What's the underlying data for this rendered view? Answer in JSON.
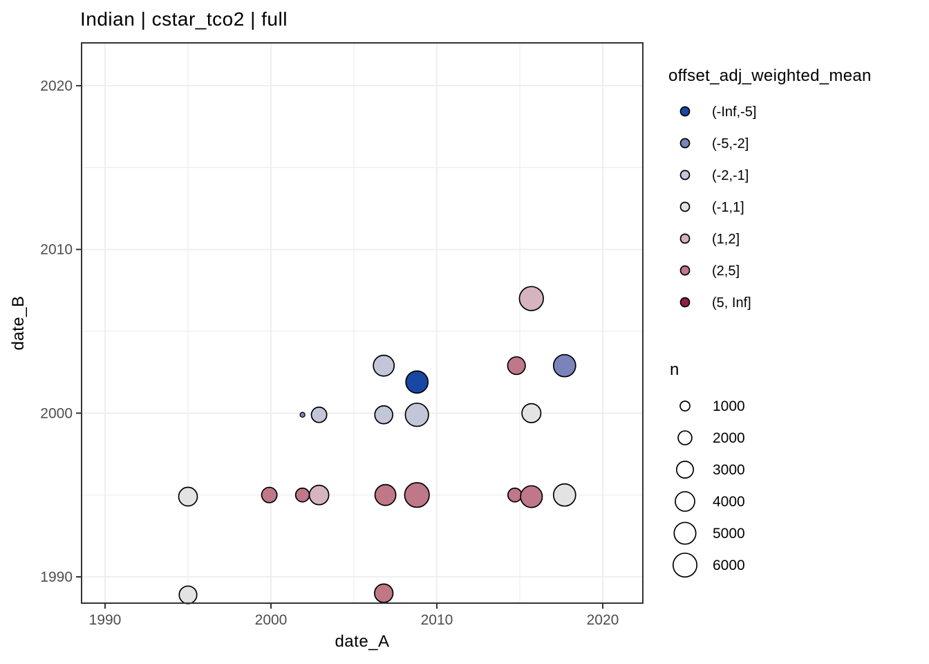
{
  "chart_data": {
    "type": "scatter",
    "title": "Indian | cstar_tco2 | full",
    "xlabel": "date_A",
    "ylabel": "date_B",
    "x_domain": [
      1988.583,
      2022.417
    ],
    "y_domain": [
      1988.395,
      2022.617
    ],
    "x_major_ticks": [
      1990,
      2000,
      2010,
      2020
    ],
    "y_major_ticks": [
      1990,
      2000,
      2010,
      2020
    ],
    "x_minor_gridlines": [
      1995,
      2005,
      2015
    ],
    "y_minor_gridlines": [
      1995,
      2005,
      2015
    ],
    "grid": true,
    "legend_position": "right",
    "color_legend": {
      "title": "offset_adj_weighted_mean",
      "bins": [
        {
          "label": "(-Inf,-5]",
          "color": "#1748a4"
        },
        {
          "label": "(-5,-2]",
          "color": "#7b84ba"
        },
        {
          "label": "(-2,-1]",
          "color": "#c3c6d8"
        },
        {
          "label": "(-1,1]",
          "color": "#e3e3e3"
        },
        {
          "label": "(1,2]",
          "color": "#d6b4bf"
        },
        {
          "label": "(2,5]",
          "color": "#bf7889"
        },
        {
          "label": "(5, Inf]",
          "color": "#8e2046"
        }
      ]
    },
    "size_legend": {
      "title": "n",
      "values": [
        1000,
        2000,
        3000,
        4000,
        5000,
        6000
      ]
    },
    "points": [
      {
        "date_A": 1995.0,
        "date_B": 1994.9,
        "n": 3700,
        "bin": "(-1,1]"
      },
      {
        "date_A": 1995.0,
        "date_B": 1988.9,
        "n": 3300,
        "bin": "(-1,1]"
      },
      {
        "date_A": 1999.9,
        "date_B": 1995.0,
        "n": 2500,
        "bin": "(2,5]"
      },
      {
        "date_A": 2001.9,
        "date_B": 1995.0,
        "n": 2000,
        "bin": "(2,5]"
      },
      {
        "date_A": 2001.9,
        "date_B": 1999.9,
        "n": 250,
        "bin": "(-5,-2]"
      },
      {
        "date_A": 2002.9,
        "date_B": 1995.0,
        "n": 4000,
        "bin": "(1,2]"
      },
      {
        "date_A": 2002.9,
        "date_B": 1999.9,
        "n": 2500,
        "bin": "(-2,-1]"
      },
      {
        "date_A": 2006.8,
        "date_B": 1989.0,
        "n": 3600,
        "bin": "(2,5]"
      },
      {
        "date_A": 2006.9,
        "date_B": 1995.0,
        "n": 4600,
        "bin": "(2,5]"
      },
      {
        "date_A": 2006.8,
        "date_B": 1999.9,
        "n": 3400,
        "bin": "(-2,-1]"
      },
      {
        "date_A": 2006.8,
        "date_B": 2002.9,
        "n": 4600,
        "bin": "(-2,-1]"
      },
      {
        "date_A": 2008.8,
        "date_B": 1995.0,
        "n": 6400,
        "bin": "(2,5]"
      },
      {
        "date_A": 2008.8,
        "date_B": 1999.9,
        "n": 5700,
        "bin": "(-2,-1]"
      },
      {
        "date_A": 2008.8,
        "date_B": 2001.9,
        "n": 5200,
        "bin": "(-Inf,-5]"
      },
      {
        "date_A": 2014.7,
        "date_B": 1995.0,
        "n": 2000,
        "bin": "(2,5]"
      },
      {
        "date_A": 2014.8,
        "date_B": 2002.9,
        "n": 3300,
        "bin": "(2,5]"
      },
      {
        "date_A": 2015.7,
        "date_B": 1994.9,
        "n": 5000,
        "bin": "(2,5]"
      },
      {
        "date_A": 2015.7,
        "date_B": 2000.0,
        "n": 3800,
        "bin": "(-1,1]"
      },
      {
        "date_A": 2015.7,
        "date_B": 2007.0,
        "n": 6100,
        "bin": "(1,2]"
      },
      {
        "date_A": 2017.7,
        "date_B": 1995.0,
        "n": 5200,
        "bin": "(-1,1]"
      },
      {
        "date_A": 2017.7,
        "date_B": 2002.9,
        "n": 5200,
        "bin": "(-5,-2]"
      }
    ]
  }
}
